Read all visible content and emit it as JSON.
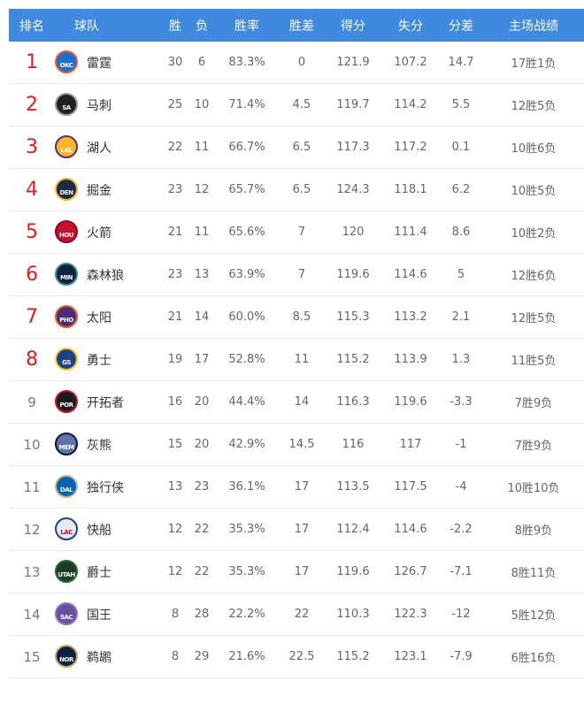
{
  "header": [
    "排名",
    "球队",
    "胜",
    "负",
    "胜率",
    "胜差",
    "得分",
    "失分",
    "分差",
    "主场战绩"
  ],
  "rows": [
    {
      "rank": "1",
      "team": "雷霆",
      "abbr": "OKC",
      "colors": [
        "#1d6fcf",
        "#ef5a2a"
      ],
      "w": "30",
      "l": "6",
      "pct": "83.3%",
      "gb": "0",
      "pf": "121.9",
      "pa": "107.2",
      "diff": "14.7",
      "home": "17胜1负"
    },
    {
      "rank": "2",
      "team": "马刺",
      "abbr": "SA",
      "colors": [
        "#222222",
        "#999999"
      ],
      "w": "25",
      "l": "10",
      "pct": "71.4%",
      "gb": "4.5",
      "pf": "119.7",
      "pa": "114.2",
      "diff": "5.5",
      "home": "12胜5负"
    },
    {
      "rank": "3",
      "team": "湖人",
      "abbr": "LAL",
      "colors": [
        "#f6b824",
        "#5a2d82"
      ],
      "w": "22",
      "l": "11",
      "pct": "66.7%",
      "gb": "6.5",
      "pf": "117.3",
      "pa": "117.2",
      "diff": "0.1",
      "home": "10胜6负"
    },
    {
      "rank": "4",
      "team": "掘金",
      "abbr": "DEN",
      "colors": [
        "#1b2a4a",
        "#f3b927"
      ],
      "w": "23",
      "l": "12",
      "pct": "65.7%",
      "gb": "6.5",
      "pf": "124.3",
      "pa": "118.1",
      "diff": "6.2",
      "home": "10胜5负"
    },
    {
      "rank": "5",
      "team": "火箭",
      "abbr": "HOU",
      "colors": [
        "#c8102e",
        "#8a0b20"
      ],
      "w": "21",
      "l": "11",
      "pct": "65.6%",
      "gb": "7",
      "pf": "120",
      "pa": "111.4",
      "diff": "8.6",
      "home": "10胜2负"
    },
    {
      "rank": "6",
      "team": "森林狼",
      "abbr": "MIN",
      "colors": [
        "#0c2340",
        "#3a8f7f"
      ],
      "w": "23",
      "l": "13",
      "pct": "63.9%",
      "gb": "7",
      "pf": "119.6",
      "pa": "114.6",
      "diff": "5",
      "home": "12胜6负"
    },
    {
      "rank": "7",
      "team": "太阳",
      "abbr": "PHO",
      "colors": [
        "#4a2d7a",
        "#e56020"
      ],
      "w": "21",
      "l": "14",
      "pct": "60.0%",
      "gb": "8.5",
      "pf": "115.3",
      "pa": "113.2",
      "diff": "2.1",
      "home": "12胜5负"
    },
    {
      "rank": "8",
      "team": "勇士",
      "abbr": "GS",
      "colors": [
        "#1d428a",
        "#ffc72c"
      ],
      "w": "19",
      "l": "17",
      "pct": "52.8%",
      "gb": "11",
      "pf": "115.2",
      "pa": "113.9",
      "diff": "1.3",
      "home": "11胜5负"
    },
    {
      "rank": "9",
      "team": "开拓者",
      "abbr": "POR",
      "colors": [
        "#1a1a1a",
        "#c8102e"
      ],
      "w": "16",
      "l": "20",
      "pct": "44.4%",
      "gb": "14",
      "pf": "116.3",
      "pa": "119.6",
      "diff": "-3.3",
      "home": "7胜9负"
    },
    {
      "rank": "10",
      "team": "灰熊",
      "abbr": "MEM",
      "colors": [
        "#5d76a9",
        "#12173f"
      ],
      "w": "15",
      "l": "20",
      "pct": "42.9%",
      "gb": "14.5",
      "pf": "116",
      "pa": "117",
      "diff": "-1",
      "home": "7胜9负"
    },
    {
      "rank": "11",
      "team": "独行侠",
      "abbr": "DAL",
      "colors": [
        "#0064b1",
        "#c9b48a"
      ],
      "w": "13",
      "l": "23",
      "pct": "36.1%",
      "gb": "17",
      "pf": "113.5",
      "pa": "117.5",
      "diff": "-4",
      "home": "10胜10负"
    },
    {
      "rank": "12",
      "team": "快船",
      "abbr": "LAC",
      "colors": [
        "#e8e8ee",
        "#1d428a"
      ],
      "w": "12",
      "l": "22",
      "pct": "35.3%",
      "gb": "17",
      "pf": "112.4",
      "pa": "114.6",
      "diff": "-2.2",
      "home": "8胜9负"
    },
    {
      "rank": "13",
      "team": "爵士",
      "abbr": "UTAH",
      "colors": [
        "#1e3d24",
        "#1f6b3a"
      ],
      "w": "12",
      "l": "22",
      "pct": "35.3%",
      "gb": "17",
      "pf": "119.6",
      "pa": "126.7",
      "diff": "-7.1",
      "home": "8胜11负"
    },
    {
      "rank": "14",
      "team": "国王",
      "abbr": "SAC",
      "colors": [
        "#6a4fa0",
        "#8a78b8"
      ],
      "w": "8",
      "l": "28",
      "pct": "22.2%",
      "gb": "22",
      "pf": "110.3",
      "pa": "122.3",
      "diff": "-12",
      "home": "5胜12负"
    },
    {
      "rank": "15",
      "team": "鹈鹕",
      "abbr": "NOR",
      "colors": [
        "#0c2340",
        "#c8a86a"
      ],
      "w": "8",
      "l": "29",
      "pct": "21.6%",
      "gb": "22.5",
      "pf": "115.2",
      "pa": "123.1",
      "diff": "-7.9",
      "home": "6胜16负"
    }
  ]
}
